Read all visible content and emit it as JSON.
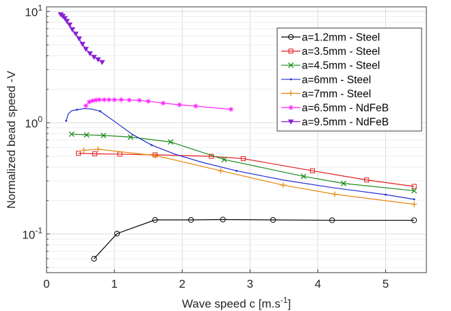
{
  "chart_data": {
    "type": "line",
    "title": "",
    "xlabel": "Wave speed c [m.s",
    "xlabel_sup": "-1",
    "xlabel_end": "]",
    "ylabel": "Normalized bead speed -V",
    "xlim": [
      0,
      5.6
    ],
    "ylim": [
      0.045,
      11
    ],
    "yscale": "log",
    "grid": true,
    "legend": "top-right",
    "x_ticks": [
      0,
      1,
      2,
      3,
      4,
      5
    ],
    "y_ticks": [
      {
        "value": 0.1,
        "base": "10",
        "exp": "-1"
      },
      {
        "value": 1,
        "base": "10",
        "exp": "0"
      },
      {
        "value": 10,
        "base": "10",
        "exp": "1"
      }
    ],
    "series": [
      {
        "name": "a=1.2mm - Steel",
        "color": "#000000",
        "marker": "circle",
        "mark_every": 1,
        "x": [
          0.7,
          1.04,
          1.6,
          2.13,
          2.6,
          3.34,
          4.21,
          5.42
        ],
        "y": [
          0.06,
          0.101,
          0.134,
          0.134,
          0.135,
          0.134,
          0.133,
          0.133
        ]
      },
      {
        "name": "a=3.5mm - Steel",
        "color": "#e31a1c",
        "marker": "square",
        "mark_every": 1,
        "x": [
          0.47,
          0.71,
          1.08,
          1.6,
          2.43,
          2.9,
          3.92,
          4.72,
          5.42
        ],
        "y": [
          0.532,
          0.526,
          0.522,
          0.515,
          0.499,
          0.476,
          0.37,
          0.306,
          0.268
        ]
      },
      {
        "name": "a=4.5mm - Steel",
        "color": "#1a8a1a",
        "marker": "x",
        "mark_every": 1,
        "x": [
          0.37,
          0.59,
          0.84,
          1.24,
          1.83,
          2.62,
          3.79,
          4.38,
          5.42
        ],
        "y": [
          0.79,
          0.778,
          0.77,
          0.743,
          0.672,
          0.467,
          0.33,
          0.285,
          0.245
        ]
      },
      {
        "name": "a=6mm - Steel",
        "color": "#1f2bd4",
        "marker": "dot",
        "mark_every": 3,
        "x": [
          0.29,
          0.32,
          0.37,
          0.45,
          0.55,
          0.66,
          0.79,
          1.03,
          1.26,
          1.55,
          1.9,
          2.3,
          2.8,
          3.5,
          4.2,
          5.0,
          5.42
        ],
        "y": [
          1.04,
          1.2,
          1.28,
          1.31,
          1.34,
          1.33,
          1.27,
          1.0,
          0.79,
          0.63,
          0.52,
          0.44,
          0.37,
          0.305,
          0.262,
          0.226,
          0.205
        ]
      },
      {
        "name": "a=7mm - Steel",
        "color": "#e8850c",
        "marker": "plus",
        "mark_every": 1,
        "x": [
          0.55,
          0.76,
          1.61,
          2.57,
          3.49,
          4.25,
          5.42
        ],
        "y": [
          0.566,
          0.578,
          0.507,
          0.37,
          0.275,
          0.228,
          0.185
        ]
      },
      {
        "name": "a=6.5mm - NdFeB",
        "color": "#ff1aff",
        "marker": "asterisk",
        "mark_every": 1,
        "x": [
          0.58,
          0.63,
          0.68,
          0.73,
          0.78,
          0.85,
          0.92,
          1.0,
          1.1,
          1.22,
          1.37,
          1.5,
          1.72,
          1.96,
          2.2,
          2.72
        ],
        "y": [
          1.42,
          1.54,
          1.58,
          1.6,
          1.61,
          1.61,
          1.61,
          1.61,
          1.61,
          1.6,
          1.59,
          1.56,
          1.5,
          1.45,
          1.41,
          1.32
        ]
      },
      {
        "name": "a=9.5mm - NdFeB",
        "color": "#8a1fd6",
        "marker": "triangle-down",
        "mark_every": 1,
        "x": [
          0.21,
          0.24,
          0.27,
          0.3,
          0.34,
          0.38,
          0.43,
          0.48,
          0.53,
          0.58,
          0.64,
          0.7,
          0.76,
          0.82
        ],
        "y": [
          9.4,
          9.1,
          8.7,
          8.2,
          7.6,
          6.9,
          6.3,
          5.7,
          5.1,
          4.6,
          4.2,
          3.9,
          3.7,
          3.5
        ]
      }
    ]
  }
}
